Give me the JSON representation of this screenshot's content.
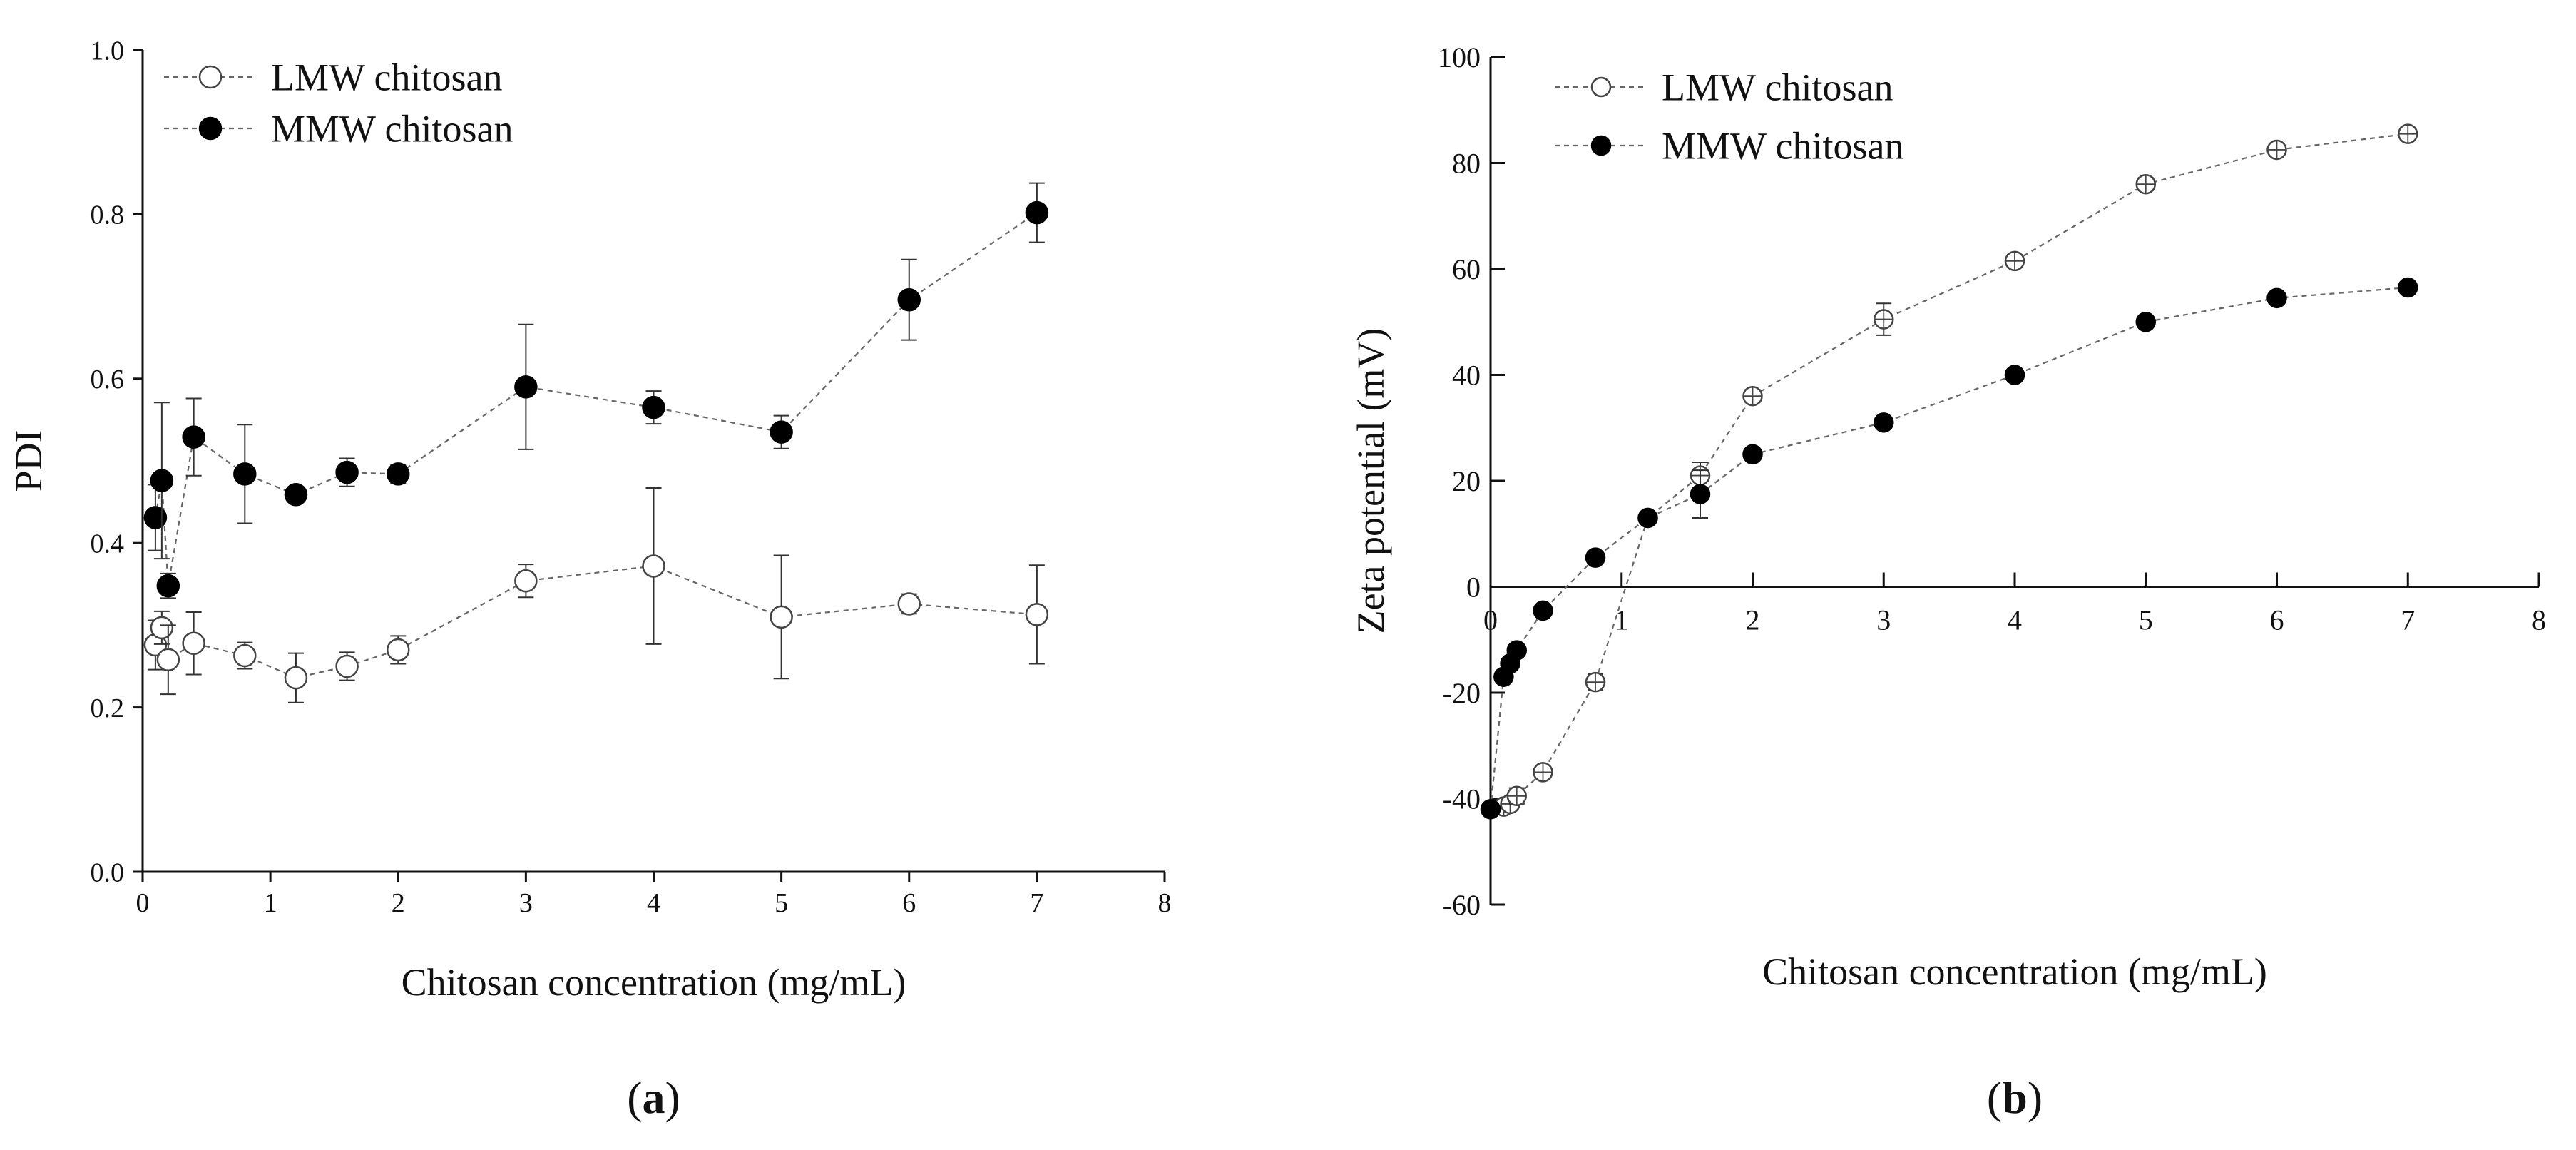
{
  "chart_data": [
    {
      "type": "scatter",
      "panel_label": "(a)",
      "title": "",
      "xlabel": "Chitosan concentration (mg/mL)",
      "ylabel": "PDI",
      "xlim": [
        0,
        8
      ],
      "ylim": [
        0,
        1.0
      ],
      "x_ticks": [
        0,
        1,
        2,
        3,
        4,
        5,
        6,
        7,
        8
      ],
      "x_tick_labels": [
        "0",
        "1",
        "2",
        "3",
        "4",
        "5",
        "6",
        "7",
        "8"
      ],
      "y_ticks": [
        0.0,
        0.2,
        0.4,
        0.6,
        0.8,
        1.0
      ],
      "y_tick_labels": [
        "0.0",
        "0.2",
        "0.4",
        "0.6",
        "0.8",
        "1.0"
      ],
      "legend_position": "top-left",
      "series": [
        {
          "name": "LMW chitosan",
          "marker": "open-circle",
          "x": [
            0.1,
            0.15,
            0.2,
            0.4,
            0.8,
            1.2,
            1.6,
            2,
            3,
            4,
            5,
            6,
            7
          ],
          "y": [
            0.276,
            0.297,
            0.258,
            0.278,
            0.263,
            0.236,
            0.25,
            0.27,
            0.354,
            0.372,
            0.31,
            0.326,
            0.313
          ],
          "err": [
            0.03,
            0.02,
            0.042,
            0.038,
            0.016,
            0.03,
            0.017,
            0.017,
            0.02,
            0.095,
            0.075,
            0.012,
            0.06
          ]
        },
        {
          "name": "MMW chitosan",
          "marker": "filled-circle",
          "x": [
            0.1,
            0.15,
            0.2,
            0.4,
            0.8,
            1.2,
            1.6,
            2,
            3,
            4,
            5,
            6,
            7
          ],
          "y": [
            0.431,
            0.476,
            0.348,
            0.529,
            0.484,
            0.459,
            0.486,
            0.484,
            0.59,
            0.565,
            0.535,
            0.696,
            0.802
          ],
          "err": [
            0.04,
            0.095,
            0.015,
            0.047,
            0.06,
            0.007,
            0.017,
            0.011,
            0.076,
            0.02,
            0.02,
            0.049,
            0.036
          ]
        }
      ]
    },
    {
      "type": "scatter",
      "panel_label": "(b)",
      "title": "",
      "xlabel": "Chitosan concentration (mg/mL)",
      "ylabel": "Zeta potential (mV)",
      "xlim": [
        0,
        8
      ],
      "ylim": [
        -60,
        100
      ],
      "x_ticks": [
        0,
        1,
        2,
        3,
        4,
        5,
        6,
        7,
        8
      ],
      "x_tick_labels": [
        "0",
        "1",
        "2",
        "3",
        "4",
        "5",
        "6",
        "7",
        "8"
      ],
      "y_ticks": [
        -60,
        -40,
        -20,
        0,
        20,
        40,
        60,
        80,
        100
      ],
      "y_tick_labels": [
        "-60",
        "-40",
        "-20",
        "0",
        "20",
        "40",
        "60",
        "80",
        "100"
      ],
      "legend_position": "top-left",
      "series": [
        {
          "name": "LMW chitosan",
          "marker": "crossed-circle",
          "x": [
            0.1,
            0.15,
            0.2,
            0.4,
            0.8,
            1.2,
            1.6,
            2,
            3,
            4,
            5,
            6,
            7
          ],
          "y": [
            -41.5,
            -41,
            -39.5,
            -35,
            -18,
            13,
            21,
            36,
            50.5,
            61.5,
            76,
            82.5,
            85.5
          ],
          "err": [
            0.8,
            0.8,
            1.5,
            1.2,
            1.5,
            1,
            2.5,
            1.2,
            3,
            1.2,
            1.2,
            1,
            1.2
          ]
        },
        {
          "name": "MMW chitosan",
          "marker": "filled-circle",
          "x": [
            0.0,
            0.1,
            0.15,
            0.2,
            0.4,
            0.8,
            1.2,
            1.6,
            2,
            3,
            4,
            5,
            6,
            7
          ],
          "y": [
            -42,
            -17,
            -14.5,
            -12,
            -4.5,
            5.5,
            13,
            17.5,
            25,
            31,
            40,
            50,
            54.5,
            56.5
          ],
          "err": [
            0,
            0.8,
            0.8,
            0.8,
            0.5,
            0.5,
            1,
            4.5,
            0.5,
            0.5,
            0.5,
            0.5,
            0.5,
            0.5
          ]
        }
      ]
    }
  ]
}
